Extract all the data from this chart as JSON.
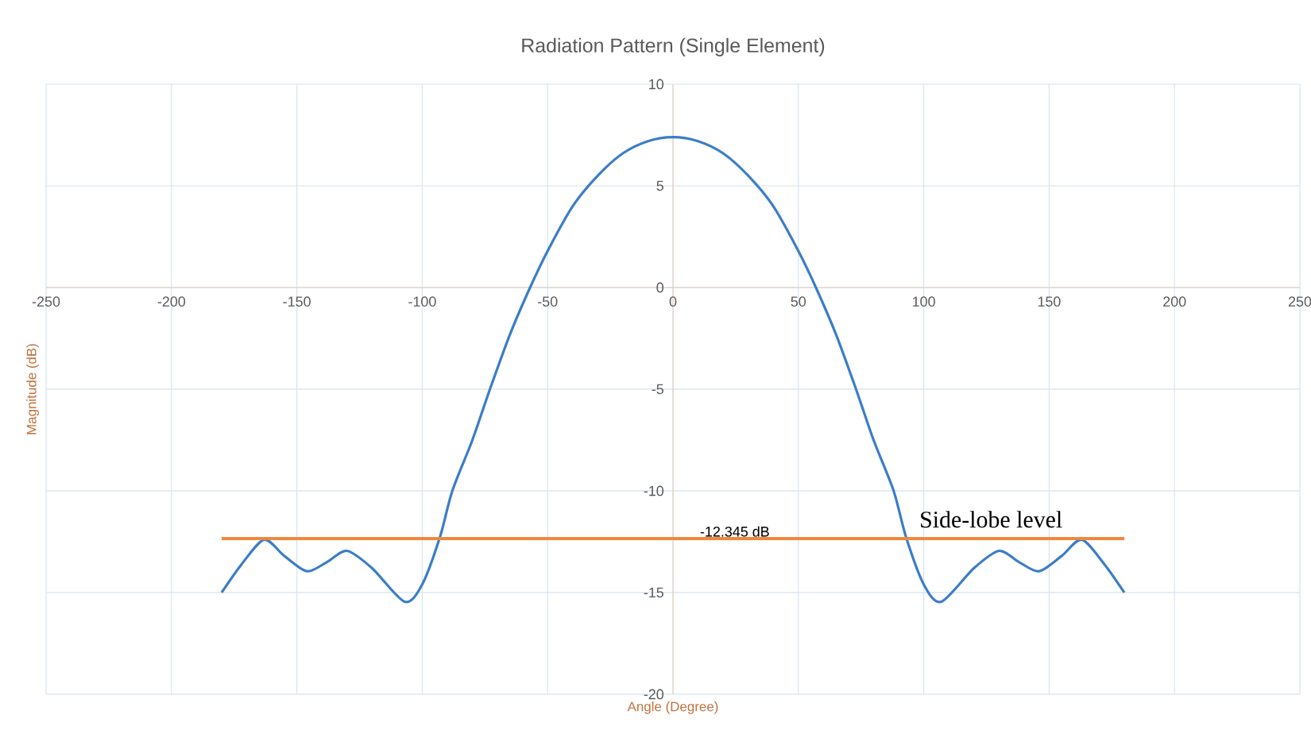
{
  "chart_data": {
    "type": "line",
    "title": "Radiation Pattern (Single Element)",
    "xlabel": "Angle (Degree)",
    "ylabel": "Magnitude (dB)",
    "x": [
      -180,
      -172,
      -163,
      -155,
      -146,
      -138,
      -130,
      -120,
      -107,
      -100,
      -93,
      -88,
      -80,
      -73,
      -65,
      -57,
      -50,
      -40,
      -30,
      -20,
      -10,
      0,
      10,
      20,
      30,
      40,
      50,
      57,
      65,
      73,
      80,
      88,
      93,
      100,
      107,
      120,
      130,
      138,
      146,
      155,
      163,
      172,
      180
    ],
    "series": [
      {
        "color": "#3b7dc8",
        "values": [
          -15,
          -13.6,
          -12.4,
          -13.2,
          -13.95,
          -13.5,
          -12.95,
          -13.8,
          -15.45,
          -14.6,
          -12.3,
          -10,
          -7.5,
          -5,
          -2.3,
          0,
          1.8,
          4,
          5.5,
          6.6,
          7.2,
          7.4,
          7.2,
          6.6,
          5.5,
          4,
          1.8,
          0,
          -2.3,
          -5,
          -7.5,
          -10,
          -12.3,
          -14.6,
          -15.45,
          -13.8,
          -12.95,
          -13.5,
          -13.95,
          -13.2,
          -12.4,
          -13.6,
          -15
        ]
      }
    ],
    "xlim": [
      -250,
      250
    ],
    "xticks": [
      -250,
      -200,
      -150,
      -100,
      -50,
      0,
      50,
      100,
      150,
      200,
      250
    ],
    "ylim": [
      -20,
      10
    ],
    "yticks": [
      -20,
      -15,
      -10,
      -5,
      0,
      5,
      10
    ],
    "grid": true,
    "marker": "none",
    "line_style": "solid",
    "ref_lines": [
      {
        "axis": "y",
        "value": -12.345,
        "label": "-12.345 dB",
        "color": "#f0883c"
      }
    ],
    "annotations": [
      "Side-lobe level"
    ]
  }
}
